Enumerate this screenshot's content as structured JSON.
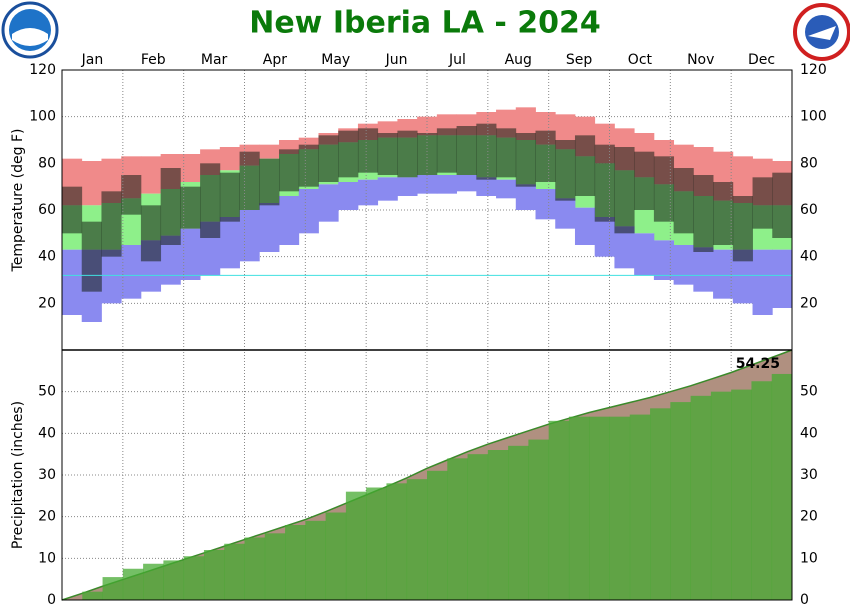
{
  "chart_data": [
    {
      "type": "range",
      "title": "New Iberia LA - 2024",
      "y_label": "Temperature (deg F)",
      "categories": [
        "Jan",
        "Feb",
        "Mar",
        "Apr",
        "May",
        "Jun",
        "Jul",
        "Aug",
        "Sep",
        "Oct",
        "Nov",
        "Dec"
      ],
      "ylim": [
        0,
        120
      ],
      "yticks": [
        20,
        40,
        60,
        80,
        100,
        120
      ],
      "grid": true,
      "reference_line": 32,
      "bands": [
        {
          "color": "#f08a8a",
          "low": [
            62,
            62,
            63,
            65,
            67,
            69,
            72,
            75,
            77,
            79,
            82,
            84,
            86,
            88,
            89,
            90,
            91,
            91,
            92,
            92,
            92,
            92,
            91,
            90,
            88,
            86,
            83,
            80,
            77,
            74,
            71,
            68,
            66,
            64,
            63,
            62,
            62
          ],
          "high": [
            82,
            81,
            82,
            83,
            83,
            84,
            84,
            86,
            87,
            88,
            88,
            90,
            91,
            93,
            95,
            97,
            98,
            99,
            100,
            101,
            101,
            102,
            103,
            104,
            102,
            101,
            100,
            97,
            95,
            93,
            90,
            88,
            87,
            85,
            83,
            82,
            81
          ]
        },
        {
          "color": "#8ef08a",
          "low": [
            43,
            43,
            43,
            45,
            47,
            49,
            52,
            55,
            57,
            60,
            63,
            66,
            69,
            71,
            72,
            73,
            74,
            74,
            75,
            75,
            75,
            74,
            73,
            71,
            69,
            65,
            61,
            57,
            53,
            50,
            47,
            45,
            44,
            43,
            43,
            43,
            43
          ],
          "high": [
            62,
            62,
            63,
            65,
            67,
            69,
            72,
            75,
            77,
            79,
            82,
            84,
            86,
            88,
            89,
            90,
            91,
            91,
            92,
            92,
            92,
            92,
            91,
            90,
            88,
            86,
            83,
            80,
            77,
            74,
            71,
            68,
            66,
            64,
            63,
            62,
            62
          ]
        },
        {
          "color": "#8a8af0",
          "low": [
            15,
            12,
            20,
            22,
            25,
            28,
            30,
            32,
            35,
            38,
            42,
            45,
            50,
            55,
            60,
            62,
            64,
            66,
            67,
            67,
            68,
            66,
            65,
            60,
            56,
            52,
            45,
            40,
            35,
            32,
            30,
            28,
            25,
            22,
            20,
            15,
            18
          ],
          "high": [
            43,
            43,
            43,
            45,
            47,
            49,
            52,
            55,
            57,
            60,
            63,
            66,
            69,
            71,
            72,
            73,
            74,
            74,
            75,
            75,
            75,
            74,
            73,
            71,
            69,
            65,
            61,
            57,
            53,
            50,
            47,
            45,
            44,
            43,
            43,
            43,
            43
          ]
        },
        {
          "color": "rgba(20,30,20,0.55)",
          "low": [
            50,
            25,
            40,
            58,
            38,
            45,
            52,
            48,
            55,
            60,
            62,
            68,
            70,
            72,
            74,
            76,
            75,
            74,
            75,
            76,
            75,
            73,
            74,
            70,
            72,
            64,
            66,
            55,
            50,
            60,
            55,
            50,
            42,
            45,
            38,
            52,
            48
          ],
          "high": [
            70,
            55,
            68,
            75,
            62,
            78,
            70,
            80,
            76,
            85,
            82,
            86,
            88,
            92,
            94,
            95,
            93,
            94,
            93,
            95,
            96,
            97,
            95,
            93,
            94,
            90,
            92,
            88,
            87,
            85,
            83,
            78,
            75,
            72,
            66,
            74,
            76
          ]
        }
      ]
    },
    {
      "type": "precip",
      "y_label": "Precipitation (inches)",
      "annotation": "54.25",
      "ylim": [
        0,
        60
      ],
      "yticks": [
        0,
        10,
        20,
        30,
        40,
        50
      ],
      "grid": true,
      "series": [
        {
          "color": "#b09080",
          "line_color": "#3a8a2a",
          "values": [
            0,
            1.6,
            3.3,
            4.9,
            6.5,
            8.1,
            9.7,
            11.3,
            12.9,
            14.5,
            16.1,
            17.7,
            19.3,
            21.2,
            23.2,
            25.2,
            27.2,
            29.3,
            31.6,
            33.6,
            35.6,
            37.4,
            39.0,
            40.6,
            42.2,
            43.6,
            45.0,
            46.2,
            47.4,
            48.6,
            50.0,
            51.4,
            53.0,
            54.6,
            56.4,
            58.2,
            60.0
          ]
        },
        {
          "color": "rgba(70,170,50,0.75)",
          "values": [
            0,
            2,
            5.5,
            7.5,
            8.7,
            9.5,
            10.5,
            12,
            13.5,
            15,
            16,
            18,
            19,
            21,
            26,
            27,
            28,
            29,
            31,
            34,
            35,
            36,
            37,
            38.5,
            43,
            44,
            44,
            44,
            44.5,
            46,
            47.5,
            49,
            50,
            50.5,
            52.5,
            54.25,
            54.25
          ]
        }
      ]
    }
  ]
}
